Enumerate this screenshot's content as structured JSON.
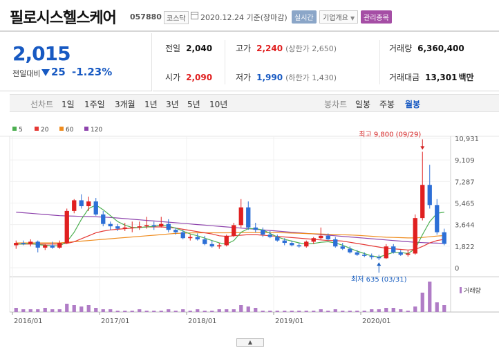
{
  "header": {
    "company": "필로시스헬스케어",
    "code": "057880",
    "market": "코스닥",
    "date": "2020.12.24 기준(장마감)",
    "realtime_label": "실시간",
    "company_info_label": "기업개요",
    "managed_label": "관리종목"
  },
  "price": {
    "current": "2,015",
    "change_label": "전일대비",
    "change": "25",
    "change_pct": "-1.23%"
  },
  "stats": {
    "prev_close": {
      "label": "전일",
      "value": "2,040"
    },
    "high": {
      "label": "고가",
      "value": "2,240",
      "note": "(상한가 2,650)"
    },
    "volume": {
      "label": "거래량",
      "value": "6,360,400"
    },
    "open": {
      "label": "시가",
      "value": "2,090"
    },
    "low": {
      "label": "저가",
      "value": "1,990",
      "note": "(하한가 1,430)"
    },
    "turnover": {
      "label": "거래대금",
      "value": "13,301",
      "unit": "백만"
    }
  },
  "tabs": {
    "line_label": "선차트",
    "line": [
      "1일",
      "1주일",
      "3개월",
      "1년",
      "3년",
      "5년",
      "10년"
    ],
    "candle_label": "봉차트",
    "candle": [
      "일봉",
      "주봉",
      "월봉"
    ],
    "active_candle": "월봉"
  },
  "chart_data": {
    "type": "candlestick",
    "legend": [
      {
        "name": "5",
        "color": "#4caf50"
      },
      {
        "name": "20",
        "color": "#e53935"
      },
      {
        "name": "60",
        "color": "#ef8c1e"
      },
      {
        "name": "120",
        "color": "#8e44ad"
      }
    ],
    "y_ticks": [
      10931,
      9109,
      7287,
      5465,
      3644,
      1822,
      0
    ],
    "y_tick_labels": [
      "10,931",
      "9,109",
      "7,287",
      "5,465",
      "3,644",
      "1,822",
      "0"
    ],
    "x_labels": [
      "2016/01",
      "2017/01",
      "2018/01",
      "2019/01",
      "2020/01"
    ],
    "max_annotation": "최고 9,800 (09/29)",
    "min_annotation": "최저 635 (03/31)",
    "volume_label": "거래량",
    "candles": [
      {
        "o": 1900,
        "h": 2300,
        "l": 1600,
        "c": 2100
      },
      {
        "o": 2100,
        "h": 2300,
        "l": 1900,
        "c": 2000
      },
      {
        "o": 2000,
        "h": 2400,
        "l": 1800,
        "c": 2200
      },
      {
        "o": 2200,
        "h": 2300,
        "l": 1300,
        "c": 1700
      },
      {
        "o": 1700,
        "h": 2000,
        "l": 1500,
        "c": 1900
      },
      {
        "o": 1900,
        "h": 2200,
        "l": 1600,
        "c": 1700
      },
      {
        "o": 1700,
        "h": 2300,
        "l": 1600,
        "c": 2100
      },
      {
        "o": 2100,
        "h": 5000,
        "l": 2000,
        "c": 4800
      },
      {
        "o": 4800,
        "h": 5800,
        "l": 4600,
        "c": 5700
      },
      {
        "o": 5700,
        "h": 6200,
        "l": 5000,
        "c": 5200
      },
      {
        "o": 5200,
        "h": 6000,
        "l": 4800,
        "c": 5600
      },
      {
        "o": 5600,
        "h": 5900,
        "l": 4400,
        "c": 4500
      },
      {
        "o": 4500,
        "h": 4800,
        "l": 3500,
        "c": 3700
      },
      {
        "o": 3700,
        "h": 3900,
        "l": 3200,
        "c": 3500
      },
      {
        "o": 3500,
        "h": 3700,
        "l": 3100,
        "c": 3300
      },
      {
        "o": 3300,
        "h": 3800,
        "l": 3100,
        "c": 3400
      },
      {
        "o": 3400,
        "h": 3900,
        "l": 3000,
        "c": 3400
      },
      {
        "o": 3400,
        "h": 3900,
        "l": 3200,
        "c": 3500
      },
      {
        "o": 3500,
        "h": 4300,
        "l": 3300,
        "c": 3600
      },
      {
        "o": 3600,
        "h": 3900,
        "l": 3200,
        "c": 3500
      },
      {
        "o": 3500,
        "h": 4300,
        "l": 3400,
        "c": 3700
      },
      {
        "o": 3700,
        "h": 4100,
        "l": 3000,
        "c": 3200
      },
      {
        "o": 3200,
        "h": 3400,
        "l": 2800,
        "c": 3000
      },
      {
        "o": 3000,
        "h": 3200,
        "l": 2400,
        "c": 2500
      },
      {
        "o": 2500,
        "h": 2800,
        "l": 2300,
        "c": 2600
      },
      {
        "o": 2600,
        "h": 2900,
        "l": 2300,
        "c": 2400
      },
      {
        "o": 2400,
        "h": 2700,
        "l": 1900,
        "c": 2000
      },
      {
        "o": 2000,
        "h": 2300,
        "l": 1700,
        "c": 1800
      },
      {
        "o": 1800,
        "h": 2100,
        "l": 1600,
        "c": 1900
      },
      {
        "o": 1900,
        "h": 2800,
        "l": 1800,
        "c": 2700
      },
      {
        "o": 2700,
        "h": 3800,
        "l": 2600,
        "c": 3600
      },
      {
        "o": 3600,
        "h": 5800,
        "l": 3400,
        "c": 5100
      },
      {
        "o": 5100,
        "h": 5600,
        "l": 3200,
        "c": 3400
      },
      {
        "o": 3400,
        "h": 3800,
        "l": 3000,
        "c": 3200
      },
      {
        "o": 3200,
        "h": 3400,
        "l": 2600,
        "c": 2800
      },
      {
        "o": 2800,
        "h": 3100,
        "l": 2500,
        "c": 2600
      },
      {
        "o": 2600,
        "h": 2800,
        "l": 2200,
        "c": 2300
      },
      {
        "o": 2300,
        "h": 2500,
        "l": 1900,
        "c": 2100
      },
      {
        "o": 2100,
        "h": 2300,
        "l": 1800,
        "c": 1900
      },
      {
        "o": 1900,
        "h": 2100,
        "l": 1700,
        "c": 1800
      },
      {
        "o": 1800,
        "h": 2300,
        "l": 1700,
        "c": 2200
      },
      {
        "o": 2200,
        "h": 2600,
        "l": 2000,
        "c": 2500
      },
      {
        "o": 2500,
        "h": 3400,
        "l": 2400,
        "c": 2700
      },
      {
        "o": 2700,
        "h": 2900,
        "l": 2300,
        "c": 2400
      },
      {
        "o": 2400,
        "h": 2600,
        "l": 1700,
        "c": 1800
      },
      {
        "o": 1800,
        "h": 2100,
        "l": 1500,
        "c": 1600
      },
      {
        "o": 1600,
        "h": 1800,
        "l": 1200,
        "c": 1300
      },
      {
        "o": 1300,
        "h": 1500,
        "l": 1000,
        "c": 1100
      },
      {
        "o": 1100,
        "h": 1300,
        "l": 900,
        "c": 1000
      },
      {
        "o": 1000,
        "h": 1200,
        "l": 700,
        "c": 900
      },
      {
        "o": 900,
        "h": 1100,
        "l": 635,
        "c": 800
      },
      {
        "o": 800,
        "h": 2000,
        "l": 750,
        "c": 1800
      },
      {
        "o": 1800,
        "h": 2000,
        "l": 1200,
        "c": 1300
      },
      {
        "o": 1300,
        "h": 1500,
        "l": 1000,
        "c": 1100
      },
      {
        "o": 1100,
        "h": 1500,
        "l": 950,
        "c": 1200
      },
      {
        "o": 1200,
        "h": 4500,
        "l": 1100,
        "c": 4200
      },
      {
        "o": 4200,
        "h": 9800,
        "l": 4000,
        "c": 7000
      },
      {
        "o": 7000,
        "h": 8700,
        "l": 5000,
        "c": 5300
      },
      {
        "o": 5300,
        "h": 5800,
        "l": 2800,
        "c": 3000
      },
      {
        "o": 3000,
        "h": 3300,
        "l": 1900,
        "c": 2015
      }
    ],
    "ma5": [
      2000,
      2000,
      2050,
      1950,
      1900,
      1850,
      1850,
      2200,
      3000,
      4100,
      5000,
      5300,
      4900,
      4400,
      3900,
      3600,
      3400,
      3400,
      3450,
      3500,
      3600,
      3500,
      3350,
      3100,
      2850,
      2700,
      2500,
      2300,
      2100,
      2000,
      2300,
      3000,
      3300,
      3300,
      3200,
      2900,
      2600,
      2400,
      2250,
      2100,
      2000,
      2050,
      2150,
      2200,
      2100,
      1900,
      1650,
      1400,
      1200,
      1000,
      900,
      1100,
      1300,
      1300,
      1200,
      1600,
      2800,
      3900,
      4600,
      4700
    ],
    "ma20": [
      2000,
      2000,
      2000,
      2000,
      2000,
      2000,
      2000,
      2050,
      2200,
      2450,
      2700,
      2950,
      3100,
      3200,
      3250,
      3300,
      3350,
      3400,
      3450,
      3450,
      3450,
      3400,
      3350,
      3250,
      3150,
      3050,
      2950,
      2850,
      2700,
      2650,
      2700,
      2750,
      2800,
      2800,
      2750,
      2700,
      2650,
      2600,
      2550,
      2500,
      2450,
      2400,
      2350,
      2300,
      2300,
      2250,
      2150,
      2050,
      1950,
      1850,
      1750,
      1650,
      1600,
      1550,
      1500,
      1550,
      1800,
      2100,
      2300,
      2400
    ],
    "ma60": [
      2100,
      2100,
      2100,
      2100,
      2100,
      2100,
      2100,
      2150,
      2200,
      2250,
      2300,
      2350,
      2400,
      2450,
      2500,
      2550,
      2600,
      2650,
      2700,
      2750,
      2800,
      2850,
      2900,
      2920,
      2940,
      2950,
      2950,
      2950,
      2950,
      2950,
      2960,
      2970,
      2980,
      2980,
      2980,
      2970,
      2960,
      2950,
      2930,
      2910,
      2890,
      2870,
      2850,
      2830,
      2810,
      2790,
      2770,
      2740,
      2700,
      2660,
      2620,
      2580,
      2560,
      2540,
      2520,
      2520,
      2560,
      2620,
      2680,
      2720
    ],
    "ma120": [
      4700,
      4650,
      4600,
      4550,
      4500,
      4450,
      4400,
      4380,
      4360,
      4340,
      4320,
      4300,
      4280,
      4250,
      4200,
      4150,
      4100,
      4050,
      4000,
      3950,
      3900,
      3850,
      3800,
      3750,
      3700,
      3650,
      3600,
      3550,
      3500,
      3450,
      3400,
      3350,
      3300,
      3250,
      3200,
      3150,
      3100,
      3050,
      3000,
      2950,
      2900,
      2850,
      2800,
      2750,
      2700,
      2650,
      2600,
      2550,
      2500,
      2450,
      2400,
      2350,
      2300,
      2250,
      2200,
      2150,
      2120,
      2100,
      2080,
      2060
    ],
    "volumes": [
      3,
      2,
      2,
      2,
      3,
      2,
      2,
      6,
      5,
      4,
      5,
      3,
      2,
      2,
      1,
      1,
      1,
      2,
      1,
      1,
      1,
      2,
      1,
      2,
      1,
      2,
      1,
      1,
      2,
      2,
      2,
      5,
      4,
      3,
      1,
      1,
      1,
      1,
      1,
      1,
      1,
      1,
      2,
      1,
      2,
      1,
      1,
      1,
      1,
      2,
      2,
      3,
      3,
      2,
      1,
      4,
      14,
      22,
      7,
      5
    ]
  }
}
